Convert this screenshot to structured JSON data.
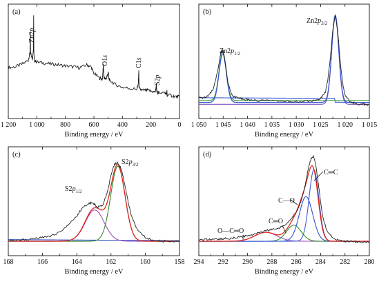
{
  "chart_data": [
    {
      "panel": "(a)",
      "type": "line",
      "title": "",
      "xlabel": "Binding energy / eV",
      "ylabel": "",
      "xlim": [
        1200,
        0
      ],
      "xticks": [
        "1 200",
        "1 000",
        "800",
        "600",
        "400",
        "200",
        "0"
      ],
      "grid": false,
      "annotations": [
        "Zn2p",
        "O1s",
        "C1s",
        "S2p"
      ],
      "colors": {
        "survey": "#1a1a1a"
      },
      "series": [
        {
          "x": [
            1200,
            1150,
            1100,
            1060,
            1048,
            1045,
            1044,
            1040,
            1030,
            1024,
            1022,
            1021,
            1018,
            1000,
            950,
            900,
            850,
            800,
            750,
            700,
            650,
            620,
            600,
            560,
            540,
            533,
            531,
            528,
            515,
            505,
            498,
            495,
            490,
            450,
            400,
            350,
            300,
            290,
            285,
            284,
            280,
            260,
            230,
            200,
            170,
            165,
            162,
            160,
            150,
            140,
            100,
            90,
            88,
            86,
            50,
            20,
            0
          ],
          "y": [
            0.42,
            0.43,
            0.46,
            0.5,
            0.58,
            0.8,
            0.58,
            0.56,
            0.52,
            0.62,
            0.97,
            0.6,
            0.5,
            0.48,
            0.47,
            0.46,
            0.45,
            0.44,
            0.43,
            0.42,
            0.45,
            0.43,
            0.36,
            0.31,
            0.3,
            0.46,
            0.35,
            0.31,
            0.3,
            0.34,
            0.37,
            0.3,
            0.29,
            0.24,
            0.21,
            0.2,
            0.19,
            0.23,
            0.39,
            0.26,
            0.19,
            0.18,
            0.18,
            0.17,
            0.16,
            0.2,
            0.24,
            0.17,
            0.15,
            0.16,
            0.15,
            0.14,
            0.17,
            0.13,
            0.12,
            0.11,
            0.11
          ]
        }
      ]
    },
    {
      "panel": "(b)",
      "type": "line",
      "title": "",
      "xlabel": "Binding energy / eV",
      "ylabel": "",
      "xlim": [
        1050,
        1015
      ],
      "xticks": [
        "1 050",
        "1 045",
        "1 040",
        "1 035",
        "1 030",
        "1 025",
        "1 020",
        "1 015"
      ],
      "grid": false,
      "annotations": [
        "Zn2p1/2",
        "Zn2p3/2"
      ],
      "colors": {
        "raw": "#222222",
        "fit": "#3b5bd6",
        "p12": "#2e9a2e",
        "p32": "#7b4fbf",
        "background": "#3b5bd6"
      },
      "series": [
        {
          "name_key": "raw",
          "x": [
            1050,
            1049,
            1048,
            1047,
            1046,
            1045.5,
            1045,
            1044.5,
            1044,
            1043,
            1042,
            1041,
            1040,
            1038,
            1036,
            1034,
            1032,
            1030,
            1028,
            1026,
            1025,
            1024,
            1023.5,
            1023,
            1022.5,
            1022,
            1021.5,
            1021,
            1020.5,
            1020,
            1019,
            1018,
            1017,
            1016,
            1015
          ],
          "y": [
            0.1,
            0.1,
            0.12,
            0.2,
            0.42,
            0.58,
            0.6,
            0.45,
            0.25,
            0.11,
            0.1,
            0.09,
            0.08,
            0.07,
            0.07,
            0.06,
            0.06,
            0.06,
            0.06,
            0.07,
            0.09,
            0.16,
            0.3,
            0.52,
            0.82,
            0.98,
            0.82,
            0.5,
            0.26,
            0.13,
            0.06,
            0.04,
            0.03,
            0.03,
            0.02
          ]
        }
      ]
    },
    {
      "panel": "(c)",
      "type": "line",
      "title": "",
      "xlabel": "Binding energy / eV",
      "ylabel": "",
      "xlim": [
        168,
        158
      ],
      "xticks": [
        "168",
        "166",
        "164",
        "162",
        "160",
        "158"
      ],
      "grid": false,
      "annotations": [
        "S2p1/2",
        "S2p3/2"
      ],
      "colors": {
        "raw": "#222222",
        "fit": "#e0241b",
        "p12": "#9d4dbb",
        "p32": "#2e8b2e",
        "background": "#2f4fc7"
      },
      "series": [
        {
          "name_key": "raw",
          "x": [
            168,
            167.5,
            167,
            166.5,
            166,
            165.5,
            165,
            164.5,
            164,
            163.8,
            163.5,
            163.2,
            163,
            162.8,
            162.5,
            162.2,
            162,
            161.8,
            161.6,
            161.4,
            161.2,
            161,
            160.8,
            160.5,
            160,
            159.5,
            159,
            158.5,
            158
          ],
          "y": [
            0.05,
            0.05,
            0.06,
            0.07,
            0.08,
            0.1,
            0.14,
            0.22,
            0.32,
            0.38,
            0.44,
            0.47,
            0.46,
            0.42,
            0.44,
            0.6,
            0.78,
            0.9,
            0.92,
            0.85,
            0.68,
            0.48,
            0.32,
            0.18,
            0.08,
            0.05,
            0.04,
            0.04,
            0.04
          ]
        }
      ]
    },
    {
      "panel": "(d)",
      "type": "line",
      "title": "",
      "xlabel": "Binding energy / eV",
      "ylabel": "",
      "xlim": [
        294,
        280
      ],
      "xticks": [
        "294",
        "292",
        "290",
        "288",
        "286",
        "284",
        "282",
        "280"
      ],
      "grid": false,
      "annotations": [
        "O—C═O",
        "C═O",
        "C—O",
        "C═C"
      ],
      "colors": {
        "raw": "#222222",
        "fit": "#e0241b",
        "occo": "#9d4dbb",
        "co_double": "#2e8b2e",
        "co_single": "#2f4fc7",
        "cc": "#3b5bd6"
      },
      "series": [
        {
          "name_key": "raw",
          "x": [
            294,
            293.5,
            293,
            292.5,
            292,
            291.5,
            291,
            290.5,
            290,
            289.5,
            289,
            288.5,
            288,
            287.5,
            287,
            286.5,
            286,
            285.7,
            285.4,
            285.2,
            285,
            284.8,
            284.6,
            284.4,
            284.2,
            284,
            283.8,
            283.5,
            283,
            282.5,
            282,
            281.5,
            281,
            280.5,
            280
          ],
          "y": [
            0.05,
            0.06,
            0.06,
            0.06,
            0.07,
            0.07,
            0.08,
            0.09,
            0.1,
            0.12,
            0.14,
            0.16,
            0.17,
            0.18,
            0.22,
            0.28,
            0.36,
            0.45,
            0.58,
            0.72,
            0.86,
            0.96,
            0.99,
            0.9,
            0.7,
            0.48,
            0.3,
            0.16,
            0.08,
            0.05,
            0.04,
            0.04,
            0.03,
            0.03,
            0.03
          ]
        }
      ]
    }
  ]
}
